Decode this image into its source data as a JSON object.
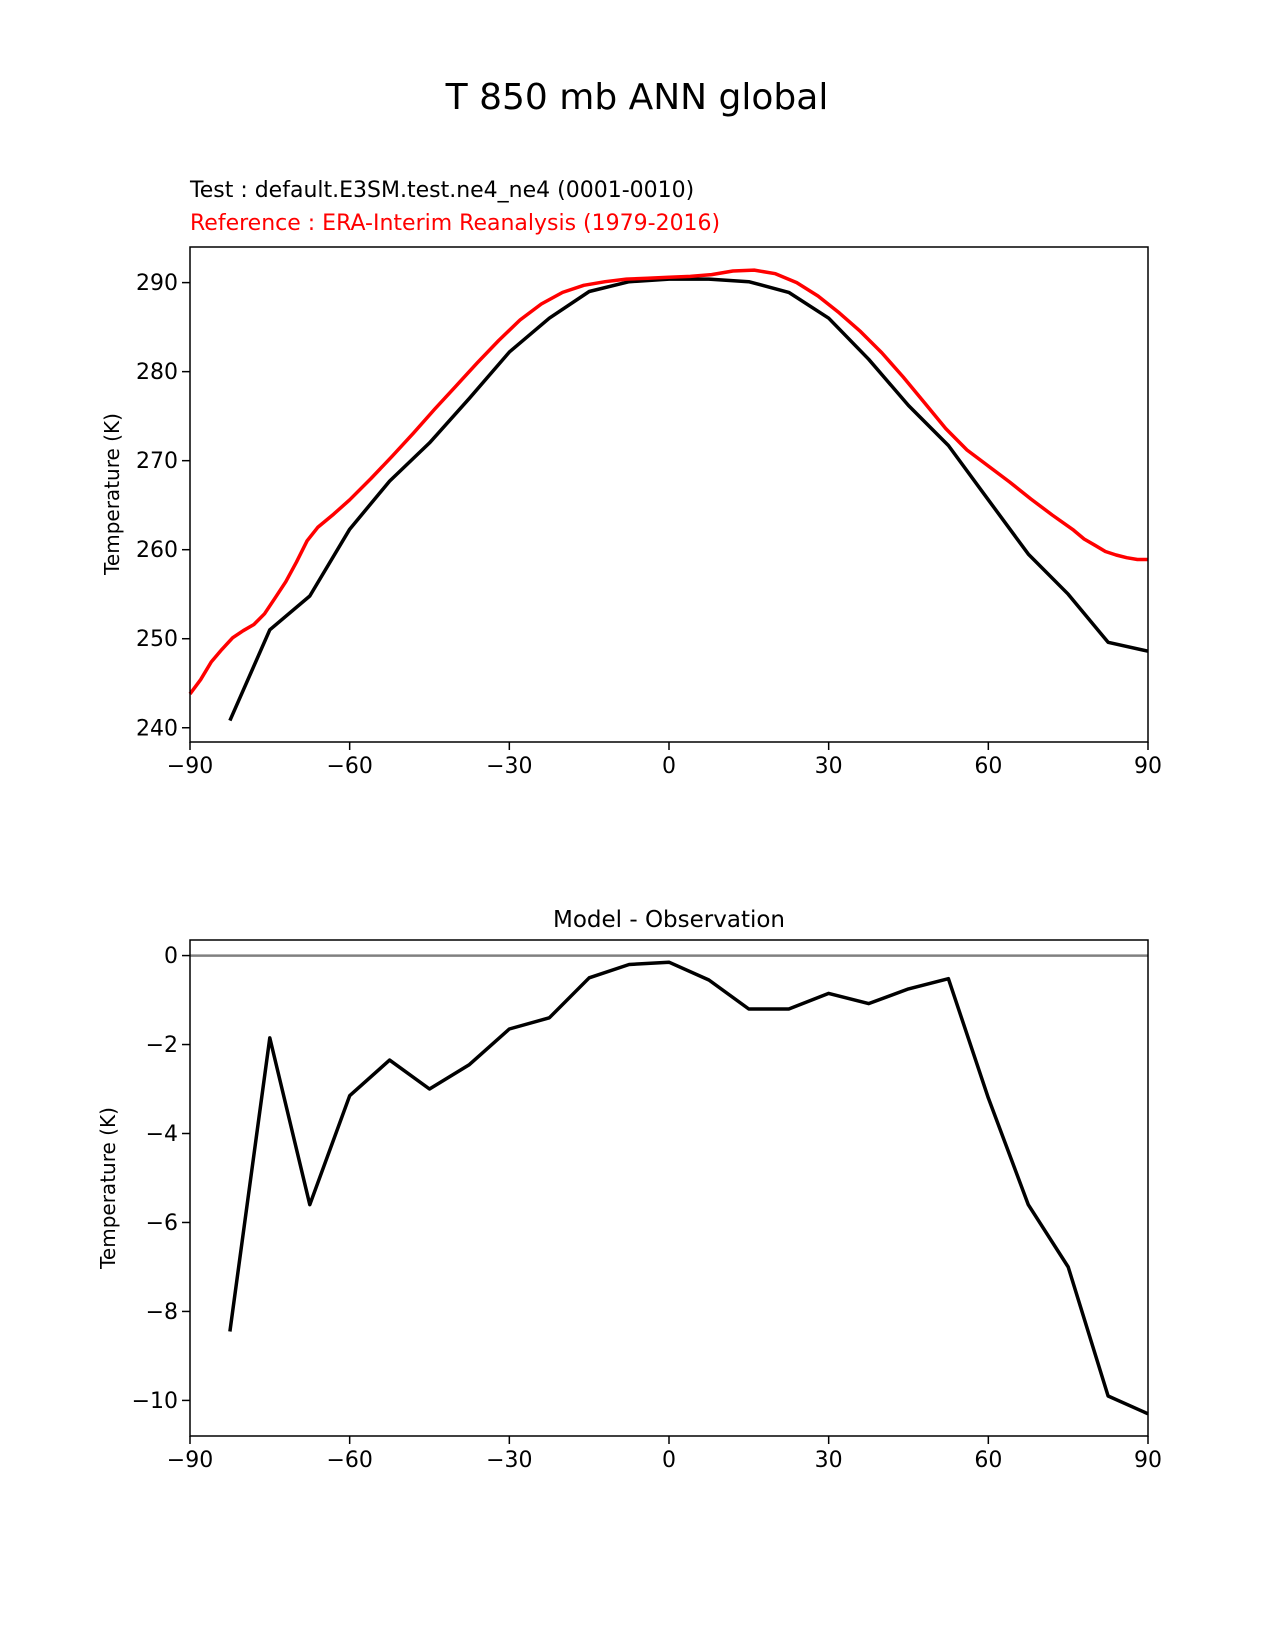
{
  "figure": {
    "title": "T 850 mb ANN global"
  },
  "colors": {
    "test": "#000000",
    "reference": "#ff0000",
    "zero_line": "#808080"
  },
  "chart_data": [
    {
      "type": "line",
      "test_label": "Test : default.E3SM.test.ne4_ne4 (0001-0010)",
      "reference_label": "Reference : ERA-Interim Reanalysis (1979-2016)",
      "xlabel": "",
      "ylabel": "Temperature (K)",
      "xlim": [
        -90,
        90
      ],
      "ylim": [
        238.4,
        294
      ],
      "xticks": [
        -90,
        -60,
        -30,
        0,
        30,
        60,
        90
      ],
      "xtick_labels": [
        "−90",
        "−60",
        "−30",
        "0",
        "30",
        "60",
        "90"
      ],
      "yticks": [
        240,
        250,
        260,
        270,
        280,
        290
      ],
      "ytick_labels": [
        "240",
        "250",
        "260",
        "270",
        "280",
        "290"
      ],
      "grid": false,
      "series": [
        {
          "name": "Test",
          "x": [
            -82.5,
            -75,
            -67.5,
            -60,
            -52.5,
            -45,
            -37.5,
            -30,
            -22.5,
            -15,
            -7.5,
            0,
            7.5,
            15,
            22.5,
            30,
            37.5,
            45,
            52.5,
            60,
            67.5,
            75,
            82.5,
            90
          ],
          "values": [
            240.8,
            251.0,
            254.8,
            262.3,
            267.7,
            272.0,
            277.0,
            282.2,
            286.0,
            289.0,
            290.1,
            290.4,
            290.4,
            290.1,
            288.9,
            286.0,
            281.4,
            276.2,
            271.7,
            265.6,
            259.5,
            255.0,
            249.6,
            248.6
          ]
        },
        {
          "name": "Reference",
          "x": [
            -90,
            -88,
            -86,
            -84,
            -82,
            -80,
            -78,
            -76,
            -74,
            -72,
            -70,
            -68,
            -66,
            -63,
            -60,
            -56,
            -52,
            -48,
            -44,
            -40,
            -36,
            -32,
            -28,
            -24,
            -20,
            -16,
            -12,
            -8,
            -4,
            0,
            4,
            8,
            12,
            16,
            20,
            24,
            28,
            32,
            36,
            40,
            44,
            48,
            52,
            56,
            60,
            64,
            68,
            72,
            76,
            78,
            80,
            82,
            84,
            86,
            88,
            90
          ],
          "values": [
            243.8,
            245.4,
            247.4,
            248.8,
            250.1,
            250.9,
            251.6,
            252.8,
            254.6,
            256.4,
            258.6,
            261.0,
            262.5,
            264.0,
            265.6,
            268.0,
            270.5,
            273.1,
            275.8,
            278.4,
            281.0,
            283.5,
            285.8,
            287.6,
            288.9,
            289.7,
            290.1,
            290.4,
            290.5,
            290.6,
            290.7,
            290.9,
            291.3,
            291.4,
            291.0,
            290.0,
            288.5,
            286.6,
            284.5,
            282.1,
            279.4,
            276.5,
            273.6,
            271.2,
            269.4,
            267.6,
            265.7,
            263.9,
            262.2,
            261.2,
            260.5,
            259.8,
            259.4,
            259.1,
            258.9,
            258.9
          ]
        }
      ]
    },
    {
      "type": "line",
      "title": "Model - Observation",
      "xlabel": "",
      "ylabel": "Temperature (K)",
      "xlim": [
        -90,
        90
      ],
      "ylim": [
        -10.8,
        0.35
      ],
      "xticks": [
        -90,
        -60,
        -30,
        0,
        30,
        60,
        90
      ],
      "xtick_labels": [
        "−90",
        "−60",
        "−30",
        "0",
        "30",
        "60",
        "90"
      ],
      "yticks": [
        0,
        -2,
        -4,
        -6,
        -8,
        -10
      ],
      "ytick_labels": [
        "0",
        "−2",
        "−4",
        "−6",
        "−8",
        "−10"
      ],
      "grid": false,
      "reference_line": 0,
      "series": [
        {
          "name": "Model - Observation",
          "x": [
            -82.5,
            -75,
            -67.5,
            -60,
            -52.5,
            -45,
            -37.5,
            -30,
            -22.5,
            -15,
            -7.5,
            0,
            7.5,
            15,
            22.5,
            30,
            37.5,
            45,
            52.5,
            60,
            67.5,
            75,
            82.5,
            90
          ],
          "values": [
            -8.45,
            -1.85,
            -5.6,
            -3.15,
            -2.35,
            -3.0,
            -2.45,
            -1.65,
            -1.4,
            -0.5,
            -0.2,
            -0.15,
            -0.55,
            -1.2,
            -1.2,
            -0.85,
            -1.08,
            -0.75,
            -0.52,
            -3.2,
            -5.6,
            -7.0,
            -9.9,
            -10.3
          ]
        }
      ]
    }
  ]
}
